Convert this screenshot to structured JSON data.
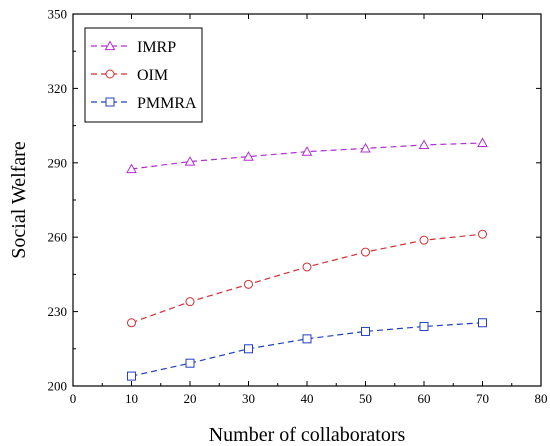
{
  "chart_data": {
    "type": "line",
    "xlabel": "Number of collaborators",
    "ylabel": "Social Welfare",
    "xlim": [
      0,
      80
    ],
    "ylim": [
      200,
      350
    ],
    "xticks": [
      0,
      10,
      20,
      30,
      40,
      50,
      60,
      70,
      80
    ],
    "yticks": [
      200,
      230,
      260,
      290,
      320,
      350
    ],
    "grid": false,
    "legend_position": "top-left",
    "x": [
      10,
      20,
      30,
      40,
      50,
      60,
      70
    ],
    "series": [
      {
        "name": "IMRP",
        "color": "#b030d0",
        "marker": "triangle-up",
        "values": [
          287.5,
          290.5,
          292.5,
          294.5,
          295.8,
          297.2,
          298.0
        ]
      },
      {
        "name": "OIM",
        "color": "#d03030",
        "marker": "circle",
        "values": [
          225.5,
          234.0,
          241.0,
          248.0,
          254.0,
          258.8,
          261.2
        ]
      },
      {
        "name": "PMMRA",
        "color": "#2040c0",
        "marker": "square",
        "values": [
          204.0,
          209.2,
          215.0,
          219.0,
          222.0,
          224.0,
          225.5
        ]
      }
    ]
  }
}
